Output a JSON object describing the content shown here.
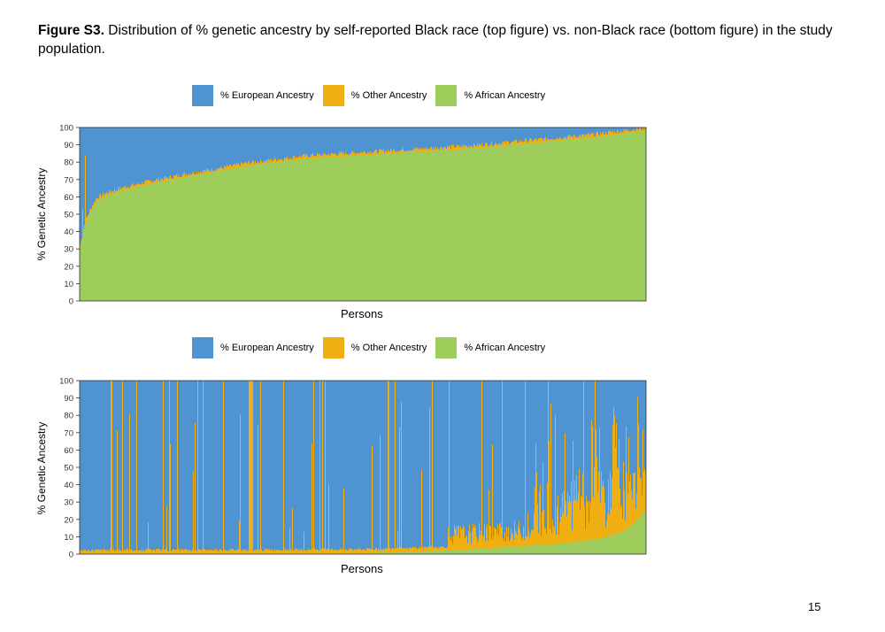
{
  "caption": {
    "label": "Figure S3.",
    "text": " Distribution of % genetic ancestry by self-reported Black race (top figure) vs. non-Black race (bottom figure) in the study population."
  },
  "page_number": "15",
  "colors": {
    "european": "#4F93D0",
    "other": "#EFAE12",
    "african": "#9ECD5C"
  },
  "chart_data": [
    {
      "type": "area",
      "subtitle": "top figure: self-reported Black race",
      "xlabel": "Persons",
      "ylabel": "% Genetic Ancestry",
      "ylim": [
        0,
        100
      ],
      "yticks": [
        0,
        10,
        20,
        30,
        40,
        50,
        60,
        70,
        80,
        90,
        100
      ],
      "stacked": true,
      "legend": "top",
      "series": [
        {
          "name": "% European Ancestry"
        },
        {
          "name": "% Other Ancestry"
        },
        {
          "name": "% African Ancestry"
        }
      ],
      "african_percentile_curve": [
        [
          0,
          30
        ],
        [
          0.005,
          38
        ],
        [
          0.01,
          45
        ],
        [
          0.02,
          52
        ],
        [
          0.03,
          58
        ],
        [
          0.05,
          61
        ],
        [
          0.08,
          64
        ],
        [
          0.12,
          67
        ],
        [
          0.18,
          71
        ],
        [
          0.25,
          75
        ],
        [
          0.3,
          78
        ],
        [
          0.35,
          80
        ],
        [
          0.4,
          82
        ],
        [
          0.5,
          84
        ],
        [
          0.6,
          86
        ],
        [
          0.7,
          88
        ],
        [
          0.8,
          91
        ],
        [
          0.9,
          94
        ],
        [
          0.95,
          96
        ],
        [
          1.0,
          98
        ]
      ],
      "other_ancestry_typical": [
        0,
        3
      ]
    },
    {
      "type": "area",
      "subtitle": "bottom figure: non-Black race",
      "xlabel": "Persons",
      "ylabel": "% Genetic Ancestry",
      "ylim": [
        0,
        100
      ],
      "yticks": [
        0,
        10,
        20,
        30,
        40,
        50,
        60,
        70,
        80,
        90,
        100
      ],
      "stacked": true,
      "legend": "top",
      "series": [
        {
          "name": "% European Ancestry"
        },
        {
          "name": "% Other Ancestry"
        },
        {
          "name": "% African Ancestry"
        }
      ],
      "african_percentile_curve": [
        [
          0,
          0
        ],
        [
          0.5,
          0.5
        ],
        [
          0.65,
          2
        ],
        [
          0.75,
          4
        ],
        [
          0.85,
          6
        ],
        [
          0.92,
          9
        ],
        [
          0.96,
          13
        ],
        [
          0.98,
          18
        ],
        [
          1.0,
          25
        ]
      ],
      "other_ancestry_typical": [
        0,
        35
      ]
    }
  ]
}
